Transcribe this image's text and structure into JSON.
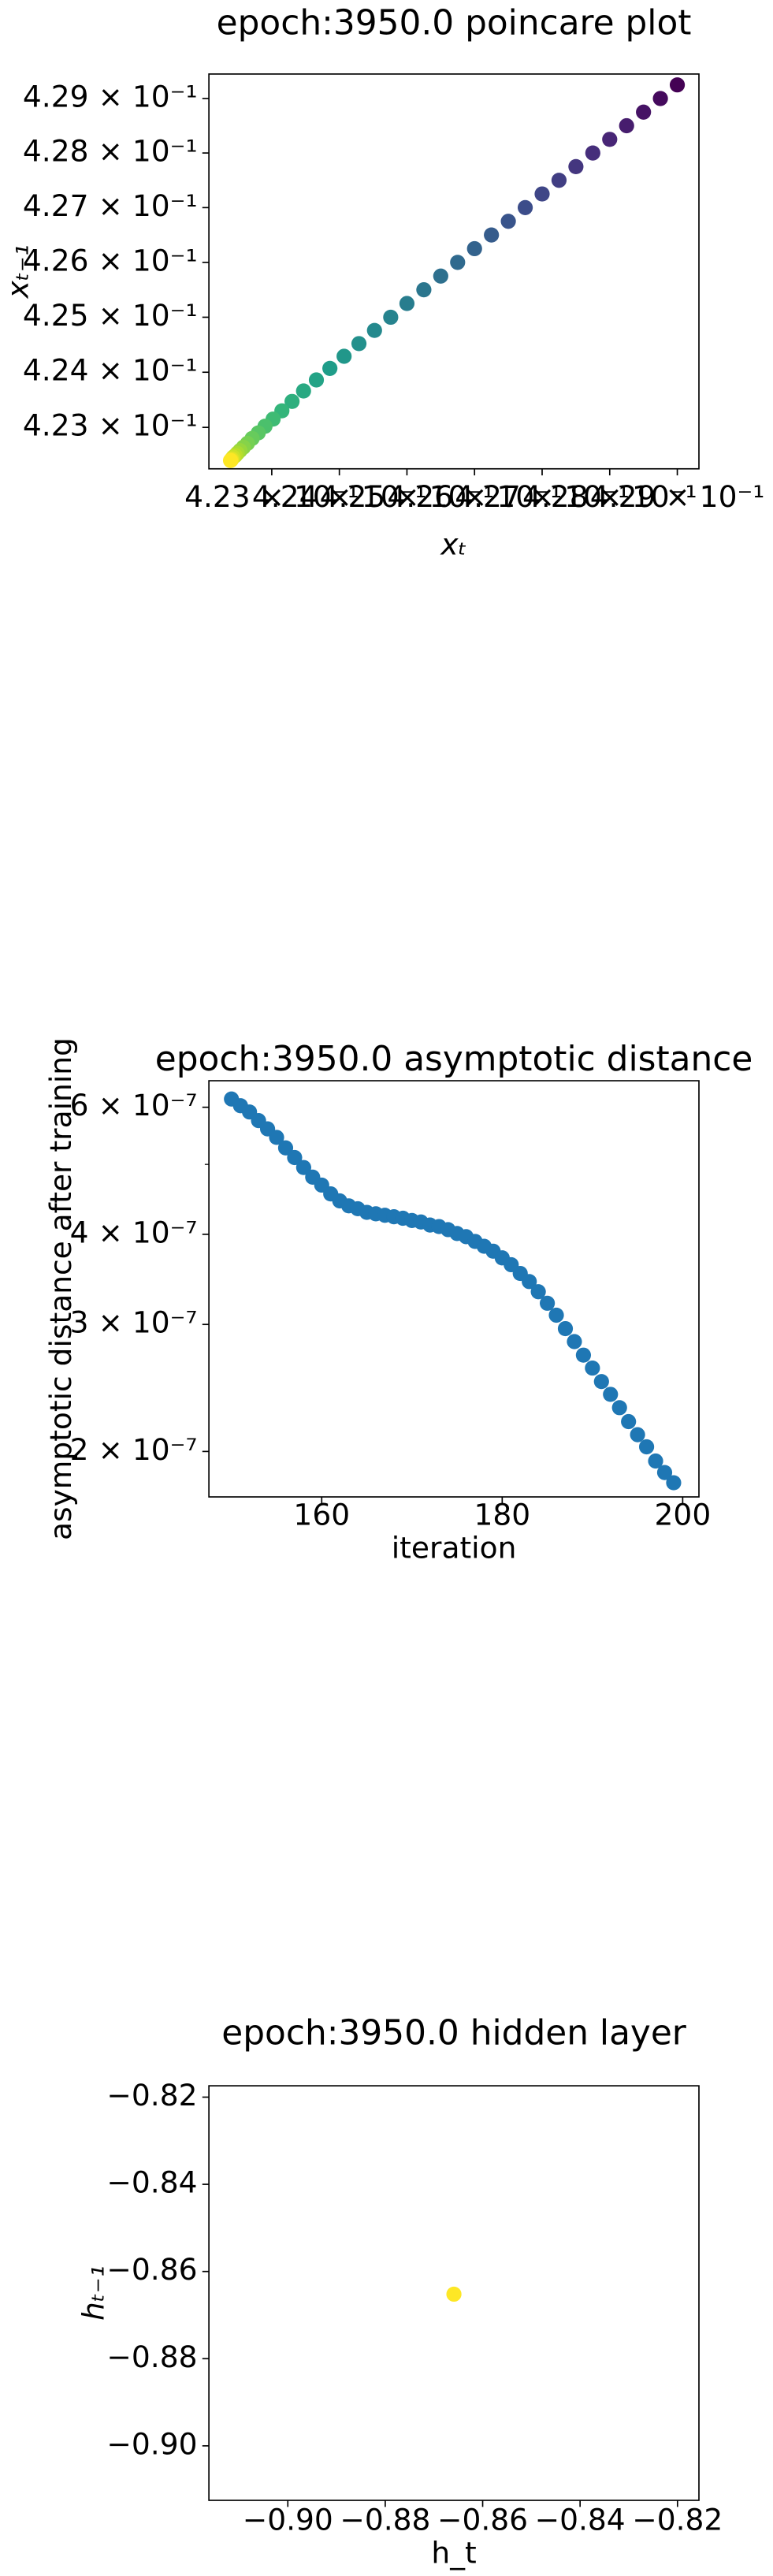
{
  "chart_data": [
    {
      "type": "scatter",
      "title": "epoch:3950.0 poincare plot",
      "xlabel": "xₜ",
      "ylabel": "xₜ₋₁",
      "yscale": "log",
      "colormap": "viridis",
      "x": [
        0.429,
        0.42875,
        0.4285,
        0.42825,
        0.428,
        0.42775,
        0.4275,
        0.42725,
        0.427,
        0.42675,
        0.4265,
        0.42625,
        0.426,
        0.42575,
        0.4255,
        0.42525,
        0.425,
        0.42476,
        0.42452,
        0.42429,
        0.42407,
        0.42386,
        0.42366,
        0.42347,
        0.4233,
        0.42315,
        0.42302,
        0.4229,
        0.4228,
        0.42271,
        0.42264,
        0.42258,
        0.42253,
        0.42249,
        0.42246,
        0.42243,
        0.42241,
        0.4224,
        0.42239
      ],
      "values": [
        0.42925,
        0.429,
        0.42875,
        0.4285,
        0.42825,
        0.428,
        0.42775,
        0.4275,
        0.42725,
        0.427,
        0.42675,
        0.4265,
        0.42625,
        0.426,
        0.42575,
        0.4255,
        0.42525,
        0.425,
        0.42476,
        0.42452,
        0.42429,
        0.42407,
        0.42386,
        0.42366,
        0.42347,
        0.4233,
        0.42315,
        0.42302,
        0.4229,
        0.4228,
        0.42271,
        0.42264,
        0.42258,
        0.42253,
        0.42249,
        0.42246,
        0.42243,
        0.42241,
        0.4224
      ],
      "xlim": [
        0.42207,
        0.42932
      ],
      "ylim": [
        0.42225,
        0.42945
      ],
      "xticks": [
        {
          "value": 0.423,
          "label": "4.23 × 10⁻¹"
        },
        {
          "value": 0.424,
          "label": "4.24 × 10⁻¹"
        },
        {
          "value": 0.425,
          "label": "4.25 × 10⁻¹"
        },
        {
          "value": 0.426,
          "label": "4.26 × 10⁻¹"
        },
        {
          "value": 0.427,
          "label": "4.27 × 10⁻¹"
        },
        {
          "value": 0.428,
          "label": "4.28 × 10⁻¹"
        },
        {
          "value": 0.429,
          "label": "4.29 × 10⁻¹"
        }
      ],
      "yticks": [
        {
          "value": 0.423,
          "label": "4.23 × 10⁻¹"
        },
        {
          "value": 0.424,
          "label": "4.24 × 10⁻¹"
        },
        {
          "value": 0.425,
          "label": "4.25 × 10⁻¹"
        },
        {
          "value": 0.426,
          "label": "4.26 × 10⁻¹"
        },
        {
          "value": 0.427,
          "label": "4.27 × 10⁻¹"
        },
        {
          "value": 0.428,
          "label": "4.28 × 10⁻¹"
        },
        {
          "value": 0.429,
          "label": "4.29 × 10⁻¹"
        }
      ]
    },
    {
      "type": "scatter",
      "title": "epoch:3950.0 asymptotic distance",
      "xlabel": "iteration",
      "ylabel": "asymptotic distance after training",
      "yscale": "log",
      "color": "#1f77b4",
      "x": [
        150,
        151,
        152,
        153,
        154,
        155,
        156,
        157,
        158,
        159,
        160,
        161,
        162,
        163,
        164,
        165,
        166,
        167,
        168,
        169,
        170,
        171,
        172,
        173,
        174,
        175,
        176,
        177,
        178,
        179,
        180,
        181,
        182,
        183,
        184,
        185,
        186,
        187,
        188,
        189,
        190,
        191,
        192,
        193,
        194,
        195,
        196,
        197,
        198,
        199
      ],
      "values": [
        6.16e-07,
        6.03e-07,
        5.91e-07,
        5.75e-07,
        5.6e-07,
        5.45e-07,
        5.27e-07,
        5.11e-07,
        4.95e-07,
        4.8e-07,
        4.68e-07,
        4.55e-07,
        4.45e-07,
        4.38e-07,
        4.34e-07,
        4.29e-07,
        4.27e-07,
        4.25e-07,
        4.23e-07,
        4.21e-07,
        4.18e-07,
        4.16e-07,
        4.12e-07,
        4.1e-07,
        4.06e-07,
        4.01e-07,
        3.97e-07,
        3.91e-07,
        3.85e-07,
        3.79e-07,
        3.71e-07,
        3.63e-07,
        3.53e-07,
        3.44e-07,
        3.33e-07,
        3.21e-07,
        3.09e-07,
        2.96e-07,
        2.84e-07,
        2.72e-07,
        2.61e-07,
        2.5e-07,
        2.4e-07,
        2.3e-07,
        2.2e-07,
        2.11e-07,
        2.03e-07,
        1.94e-07,
        1.87e-07,
        1.81e-07
      ],
      "xlim": [
        147.5,
        201.8
      ],
      "ylim": [
        1.73e-07,
        6.53e-07
      ],
      "xticks": [
        160,
        180,
        200
      ],
      "yticks": [
        {
          "value": 6e-07,
          "label": "6 × 10⁻⁷"
        },
        {
          "value": 4e-07,
          "label": "4 × 10⁻⁷"
        },
        {
          "value": 3e-07,
          "label": "3 × 10⁻⁷"
        },
        {
          "value": 2e-07,
          "label": "2 × 10⁻⁷"
        }
      ],
      "yminorticks": [
        5e-07
      ]
    },
    {
      "type": "scatter",
      "title": "epoch:3950.0 hidden layer",
      "xlabel": "h_t",
      "ylabel": "hₜ₋₁",
      "color": "#fde725",
      "x": [
        -0.8659
      ],
      "values": [
        -0.8652
      ],
      "xlim": [
        -0.9162,
        -0.8156
      ],
      "ylim": [
        -0.9125,
        -0.8174
      ],
      "xticks": [
        {
          "value": -0.9,
          "label": "−0.90"
        },
        {
          "value": -0.88,
          "label": "−0.88"
        },
        {
          "value": -0.86,
          "label": "−0.86"
        },
        {
          "value": -0.84,
          "label": "−0.84"
        },
        {
          "value": -0.82,
          "label": "−0.82"
        }
      ],
      "yticks": [
        {
          "value": -0.82,
          "label": "−0.82"
        },
        {
          "value": -0.84,
          "label": "−0.84"
        },
        {
          "value": -0.86,
          "label": "−0.86"
        },
        {
          "value": -0.88,
          "label": "−0.88"
        },
        {
          "value": -0.9,
          "label": "−0.90"
        }
      ]
    }
  ]
}
